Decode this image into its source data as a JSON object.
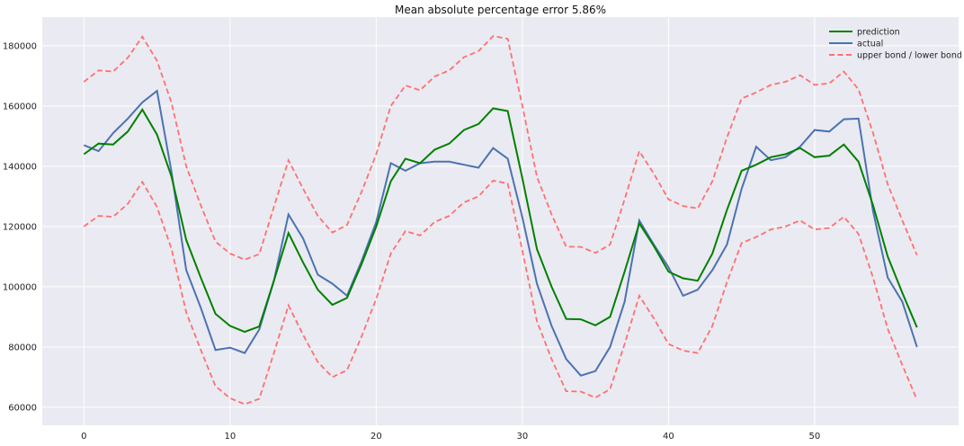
{
  "chart_data": {
    "type": "line",
    "title": "Mean absolute percentage error 5.86%",
    "xlabel": "",
    "ylabel": "",
    "xlim": [
      -2.85,
      59.85
    ],
    "ylim": [
      54000,
      189500
    ],
    "x_ticks": [
      0,
      10,
      20,
      30,
      40,
      50
    ],
    "y_ticks": [
      60000,
      80000,
      100000,
      120000,
      140000,
      160000,
      180000
    ],
    "grid": true,
    "legend_position": "top-right",
    "colors": {
      "plot_background": "#eaeaf2",
      "grid": "#ffffff",
      "prediction": "#008000",
      "actual": "#4c72b0",
      "bonds": "#ff7070"
    },
    "x": [
      0,
      1,
      2,
      3,
      4,
      5,
      6,
      7,
      8,
      9,
      10,
      11,
      12,
      13,
      14,
      15,
      16,
      17,
      18,
      19,
      20,
      21,
      22,
      23,
      24,
      25,
      26,
      27,
      28,
      29,
      30,
      31,
      32,
      33,
      34,
      35,
      36,
      37,
      38,
      39,
      40,
      41,
      42,
      43,
      44,
      45,
      46,
      47,
      48,
      49,
      50,
      51,
      52,
      53,
      54,
      55,
      56,
      57
    ],
    "series": [
      {
        "name": "prediction",
        "style": "solid",
        "values": [
          144000,
          147500,
          147200,
          151500,
          158800,
          150500,
          136500,
          115500,
          103000,
          91000,
          87000,
          85000,
          86800,
          102000,
          117800,
          108000,
          99000,
          94000,
          96300,
          107500,
          120000,
          135000,
          142500,
          141000,
          145500,
          147500,
          152000,
          154000,
          159200,
          158300,
          136000,
          112500,
          100000,
          89300,
          89200,
          87200,
          90000,
          105000,
          121000,
          113500,
          105000,
          102800,
          102000,
          111000,
          125500,
          138500,
          140500,
          143000,
          144000,
          146000,
          143000,
          143500,
          147200,
          141500,
          127000,
          110000,
          98000,
          86500
        ]
      },
      {
        "name": "actual",
        "style": "solid",
        "values": [
          147000,
          145000,
          151000,
          155800,
          161200,
          165000,
          138000,
          105500,
          93000,
          79000,
          79800,
          78000,
          85800,
          102000,
          124000,
          116000,
          104000,
          101000,
          97000,
          108500,
          121500,
          141000,
          138500,
          141000,
          141500,
          141500,
          140500,
          139500,
          146000,
          142500,
          123000,
          101000,
          87000,
          76000,
          70500,
          72000,
          80000,
          95000,
          122000,
          114000,
          106500,
          97000,
          99000,
          105500,
          114000,
          132500,
          146500,
          142000,
          143000,
          146500,
          152000,
          151500,
          155600,
          155800,
          125000,
          103000,
          95000,
          80000
        ]
      },
      {
        "name": "upper bond / lower bond",
        "style": "dashed",
        "upper": [
          168000,
          171800,
          171400,
          176000,
          183000,
          175000,
          161000,
          140000,
          127000,
          115000,
          111000,
          109000,
          110800,
          126500,
          142000,
          132500,
          123500,
          118000,
          120500,
          131500,
          144000,
          160000,
          166800,
          165200,
          169800,
          171800,
          176200,
          178200,
          183200,
          182300,
          160000,
          136500,
          124000,
          113300,
          113200,
          111200,
          114000,
          129000,
          145000,
          137500,
          129000,
          126800,
          126000,
          135000,
          149500,
          162500,
          164500,
          167000,
          168000,
          170200,
          167000,
          167500,
          171400,
          165500,
          151000,
          134000,
          122000,
          110500
        ],
        "lower": [
          120000,
          123500,
          123200,
          127500,
          134800,
          126500,
          112500,
          91500,
          79000,
          67000,
          63000,
          61000,
          62800,
          78000,
          93800,
          84000,
          75000,
          70000,
          72300,
          83500,
          96000,
          111000,
          118500,
          117000,
          121500,
          123500,
          128000,
          130000,
          135200,
          134300,
          112000,
          88500,
          76000,
          65300,
          65200,
          63200,
          66000,
          81000,
          97000,
          89500,
          81000,
          78800,
          78000,
          87000,
          101500,
          114500,
          116500,
          119000,
          120000,
          122000,
          119000,
          119500,
          123200,
          117500,
          103000,
          86000,
          74000,
          62500
        ]
      }
    ]
  }
}
